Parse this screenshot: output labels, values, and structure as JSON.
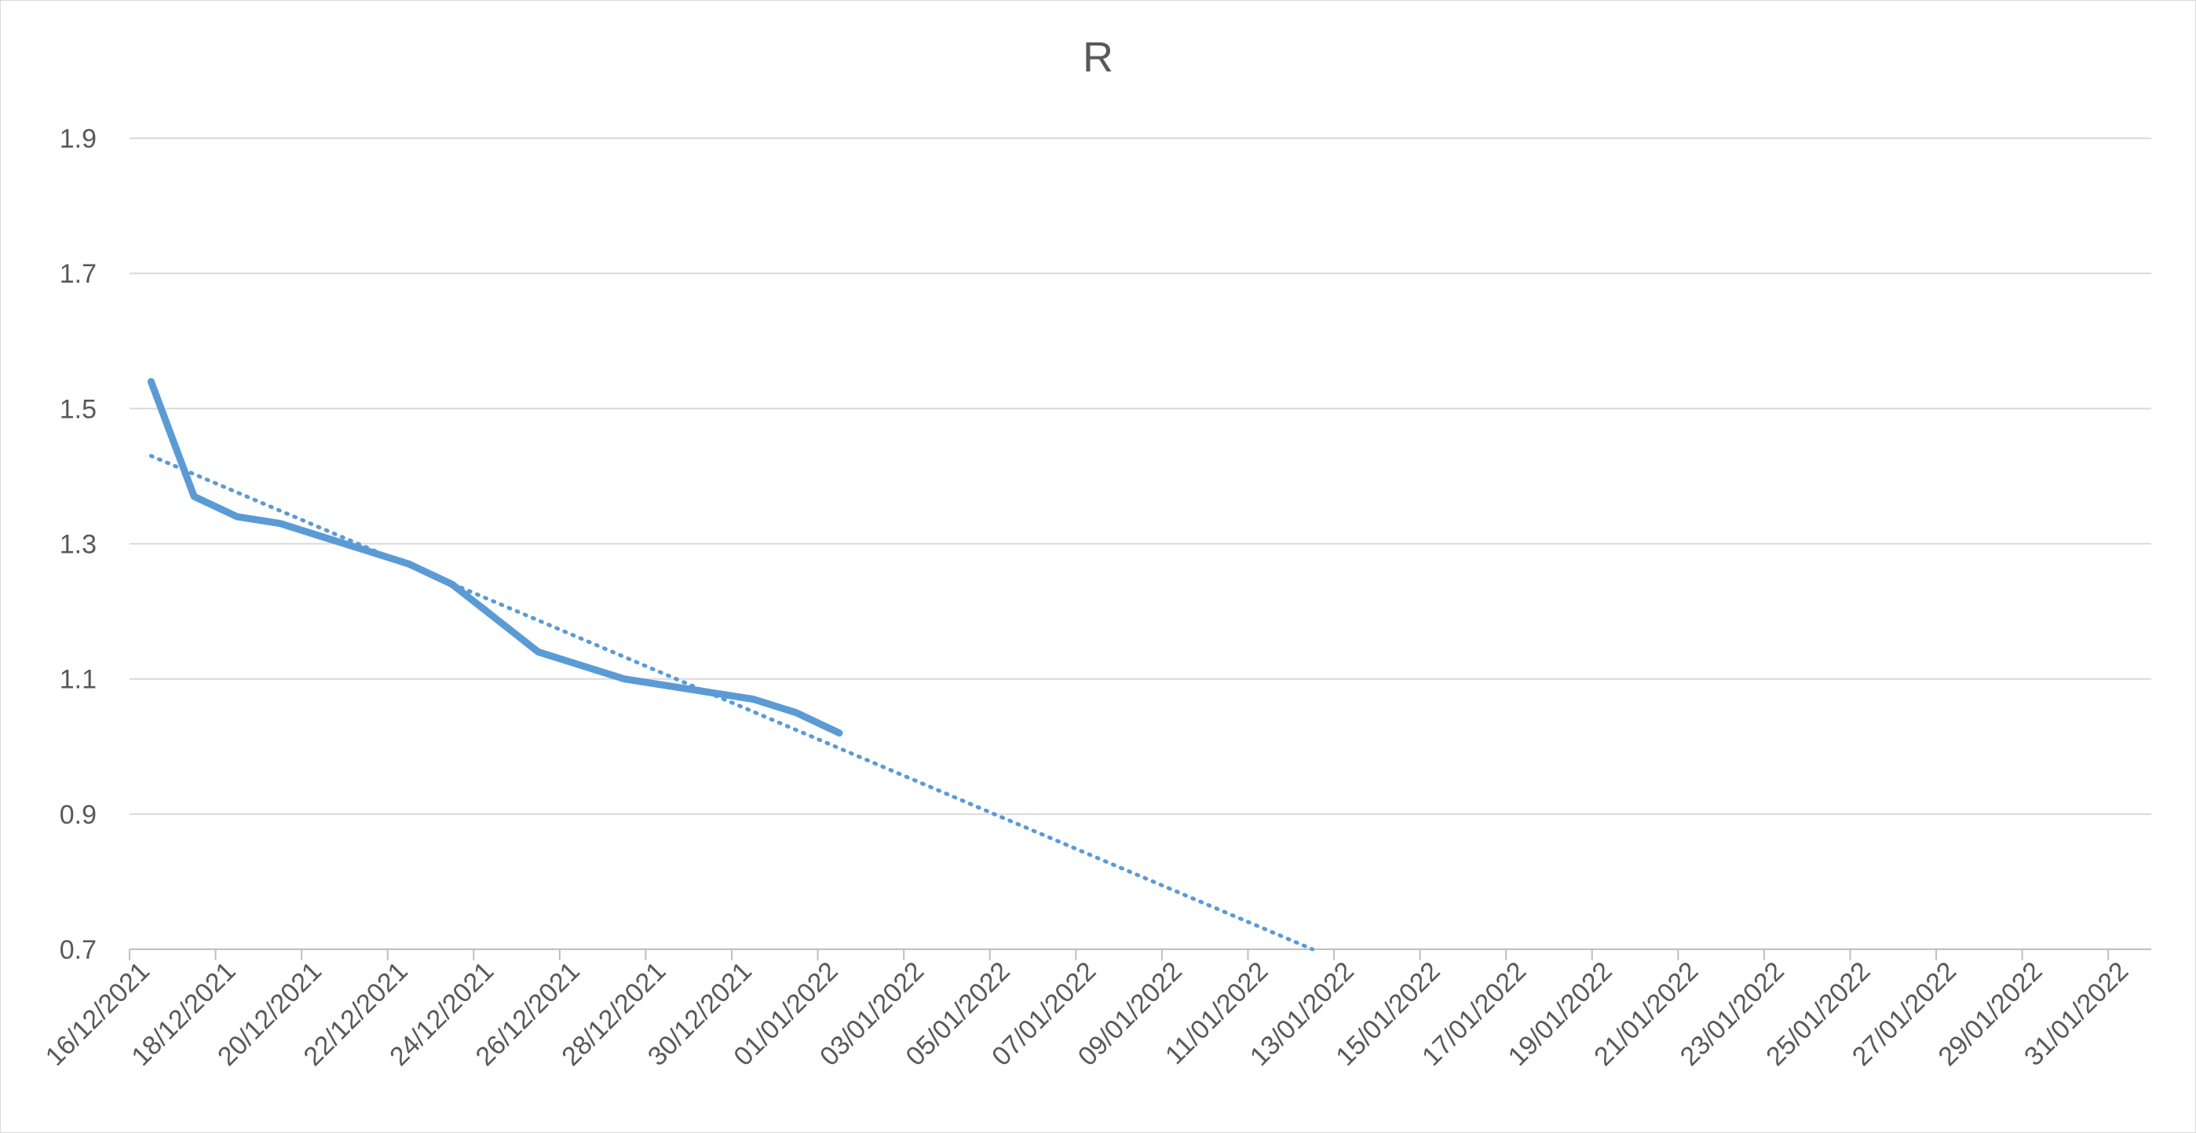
{
  "chart_data": {
    "type": "line",
    "title": "R",
    "xlabel": "",
    "ylabel": "",
    "x_axis_type": "date",
    "xlim": [
      "2021-12-16",
      "2022-01-31"
    ],
    "ylim": [
      0.7,
      2.0
    ],
    "y_ticks": [
      0.7,
      0.9,
      1.1,
      1.3,
      1.5,
      1.7,
      1.9
    ],
    "y_tick_labels": [
      "0.7",
      "0.9",
      "1.1",
      "1.3",
      "1.5",
      "1.7",
      "1.9"
    ],
    "x_ticks": [
      "2021-12-16",
      "2021-12-18",
      "2021-12-20",
      "2021-12-22",
      "2021-12-24",
      "2021-12-26",
      "2021-12-28",
      "2021-12-30",
      "2022-01-01",
      "2022-01-03",
      "2022-01-05",
      "2022-01-07",
      "2022-01-09",
      "2022-01-11",
      "2022-01-13",
      "2022-01-15",
      "2022-01-17",
      "2022-01-19",
      "2022-01-21",
      "2022-01-23",
      "2022-01-25",
      "2022-01-27",
      "2022-01-29",
      "2022-01-31"
    ],
    "x_tick_labels": [
      "16/12/2021",
      "18/12/2021",
      "20/12/2021",
      "22/12/2021",
      "24/12/2021",
      "26/12/2021",
      "28/12/2021",
      "30/12/2021",
      "01/01/2022",
      "03/01/2022",
      "05/01/2022",
      "07/01/2022",
      "09/01/2022",
      "11/01/2022",
      "13/01/2022",
      "15/01/2022",
      "17/01/2022",
      "19/01/2022",
      "21/01/2022",
      "23/01/2022",
      "25/01/2022",
      "27/01/2022",
      "29/01/2022",
      "31/01/2022"
    ],
    "gridlines": "horizontal",
    "legend": "none",
    "colors": {
      "series": "#5b9bd5",
      "grid": "#d9d9d9",
      "axis": "#bfbfbf",
      "text": "#595959"
    },
    "series": [
      {
        "style": "solid",
        "x": [
          "2021-12-16",
          "2021-12-17",
          "2021-12-18",
          "2021-12-19",
          "2021-12-20",
          "2021-12-21",
          "2021-12-22",
          "2021-12-23",
          "2021-12-24",
          "2021-12-25",
          "2021-12-26",
          "2021-12-27",
          "2021-12-28",
          "2021-12-29",
          "2021-12-30",
          "2021-12-31",
          "2022-01-01"
        ],
        "values": [
          1.54,
          1.37,
          1.34,
          1.33,
          1.31,
          1.29,
          1.27,
          1.24,
          1.19,
          1.14,
          1.12,
          1.1,
          1.09,
          1.08,
          1.07,
          1.05,
          1.02
        ]
      },
      {
        "style": "dotted",
        "trendline": "linear",
        "x": [
          "2021-12-16",
          "2022-01-12"
        ],
        "values": [
          1.43,
          0.7
        ]
      }
    ]
  }
}
